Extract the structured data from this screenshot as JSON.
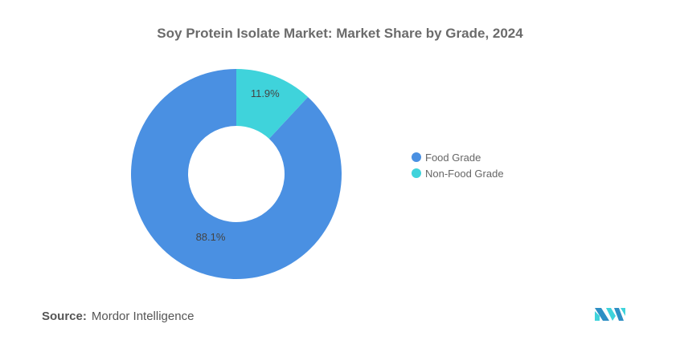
{
  "chart_data": {
    "type": "pie",
    "title": "Soy Protein Isolate Market: Market Share by Grade, 2024",
    "categories": [
      "Food Grade",
      "Non-Food Grade"
    ],
    "values": [
      88.1,
      11.9
    ],
    "labels": [
      "88.1%",
      "11.9%"
    ],
    "colors": [
      "#4A90E2",
      "#3FD3DB"
    ],
    "donut": true,
    "legend_position": "right"
  },
  "source": {
    "label": "Source:",
    "value": "Mordor Intelligence"
  },
  "logo": "Mordor Intelligence logo"
}
